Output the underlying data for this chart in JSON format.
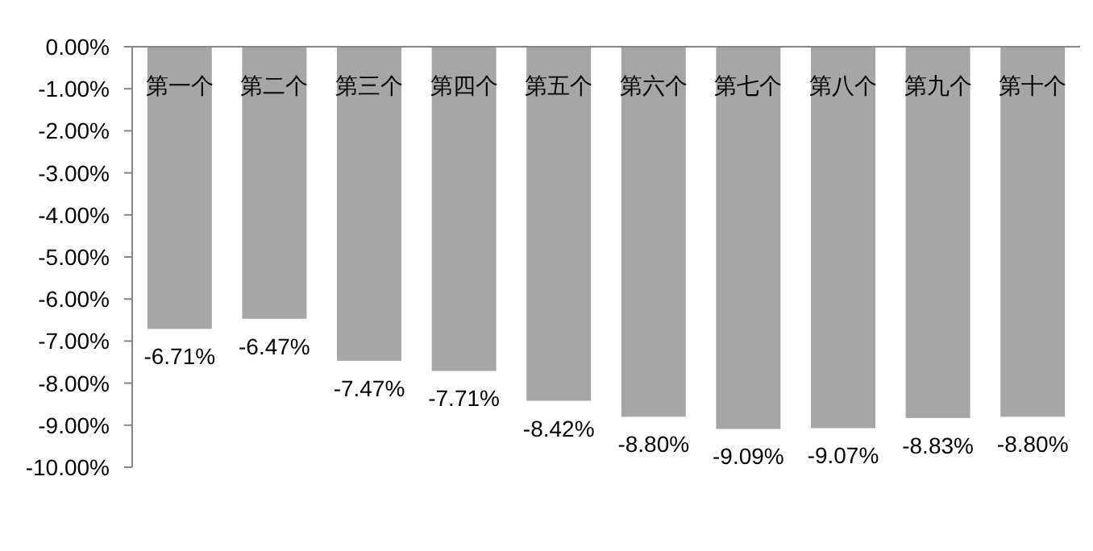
{
  "chart_data": {
    "type": "bar",
    "categories": [
      "第一个",
      "第二个",
      "第三个",
      "第四个",
      "第五个",
      "第六个",
      "第七个",
      "第八个",
      "第九个",
      "第十个"
    ],
    "values": [
      -6.71,
      -6.47,
      -7.47,
      -7.71,
      -8.42,
      -8.8,
      -9.09,
      -9.07,
      -8.83,
      -8.8
    ],
    "value_labels": [
      "-6.71%",
      "-6.47%",
      "-7.47%",
      "-7.71%",
      "-8.42%",
      "-8.80%",
      "-9.09%",
      "-9.07%",
      "-8.83%",
      "-8.80%"
    ],
    "color": "#a6a6a6",
    "ylim": [
      -10,
      0
    ],
    "yticks": [
      {
        "value": 0,
        "label": "0.00%"
      },
      {
        "value": -1,
        "label": "-1.00%"
      },
      {
        "value": -2,
        "label": "-2.00%"
      },
      {
        "value": -3,
        "label": "-3.00%"
      },
      {
        "value": -4,
        "label": "-4.00%"
      },
      {
        "value": -5,
        "label": "-5.00%"
      },
      {
        "value": -6,
        "label": "-6.00%"
      },
      {
        "value": -7,
        "label": "-7.00%"
      },
      {
        "value": -8,
        "label": "-8.00%"
      },
      {
        "value": -9,
        "label": "-9.00%"
      },
      {
        "value": -10,
        "label": "-10.00%"
      }
    ],
    "grid": false
  }
}
